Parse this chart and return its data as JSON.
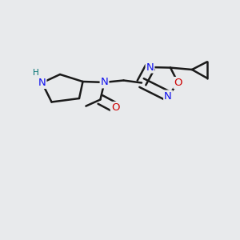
{
  "bg_color": "#e8eaec",
  "bond_color": "#1a1a1a",
  "N_color": "#1010ee",
  "O_color": "#cc0000",
  "H_color": "#007070",
  "bond_width": 1.8,
  "figsize": [
    3.0,
    3.0
  ],
  "dpi": 100,
  "xlim": [
    0.0,
    1.0
  ],
  "ylim": [
    0.0,
    1.0
  ]
}
